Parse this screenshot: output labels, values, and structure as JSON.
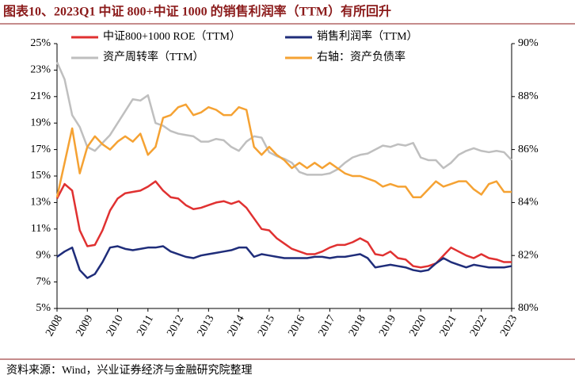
{
  "chart_data": {
    "type": "line",
    "title": "图表10、2023Q1 中证 800+中证 1000 的销售利润率（TTM）有所回升",
    "source": "资料来源：Wind，兴业证券经济与金融研究院整理",
    "x": [
      2008,
      2008.25,
      2008.5,
      2008.75,
      2009,
      2009.25,
      2009.5,
      2009.75,
      2010,
      2010.25,
      2010.5,
      2010.75,
      2011,
      2011.25,
      2011.5,
      2011.75,
      2012,
      2012.25,
      2012.5,
      2012.75,
      2013,
      2013.25,
      2013.5,
      2013.75,
      2014,
      2014.25,
      2014.5,
      2014.75,
      2015,
      2015.25,
      2015.5,
      2015.75,
      2016,
      2016.25,
      2016.5,
      2016.75,
      2017,
      2017.25,
      2017.5,
      2017.75,
      2018,
      2018.25,
      2018.5,
      2018.75,
      2019,
      2019.25,
      2019.5,
      2019.75,
      2020,
      2020.25,
      2020.5,
      2020.75,
      2021,
      2021.25,
      2021.5,
      2021.75,
      2022,
      2022.25,
      2022.5,
      2022.75,
      2023
    ],
    "xlim": [
      2008,
      2023
    ],
    "xticks": [
      2008,
      2009,
      2010,
      2011,
      2012,
      2013,
      2014,
      2015,
      2016,
      2017,
      2018,
      2019,
      2020,
      2021,
      2022,
      2023
    ],
    "ylim": [
      5,
      25
    ],
    "yticks": [
      {
        "value": 5,
        "label": "5%"
      },
      {
        "value": 7,
        "label": "7%"
      },
      {
        "value": 9,
        "label": "9%"
      },
      {
        "value": 11,
        "label": "11%"
      },
      {
        "value": 13,
        "label": "13%"
      },
      {
        "value": 15,
        "label": "15%"
      },
      {
        "value": 17,
        "label": "17%"
      },
      {
        "value": 19,
        "label": "19%"
      },
      {
        "value": 21,
        "label": "21%"
      },
      {
        "value": 23,
        "label": "23%"
      },
      {
        "value": 25,
        "label": "25%"
      }
    ],
    "y2lim": [
      80,
      90
    ],
    "y2ticks": [
      {
        "value": 80,
        "label": "80%"
      },
      {
        "value": 82,
        "label": "82%"
      },
      {
        "value": 84,
        "label": "84%"
      },
      {
        "value": 86,
        "label": "86%"
      },
      {
        "value": 88,
        "label": "88%"
      },
      {
        "value": 90,
        "label": "90%"
      }
    ],
    "grid": false,
    "series": [
      {
        "name": "中证800+1000 ROE（TTM）",
        "color": "#e03131",
        "values": [
          13.3,
          14.4,
          13.9,
          10.9,
          9.7,
          9.8,
          10.9,
          12.4,
          13.3,
          13.7,
          13.8,
          13.9,
          14.2,
          14.6,
          13.9,
          13.4,
          13.3,
          12.8,
          12.5,
          12.6,
          12.8,
          13.0,
          13.1,
          12.9,
          13.1,
          12.6,
          11.8,
          11.0,
          10.9,
          10.3,
          9.9,
          9.5,
          9.3,
          9.1,
          9.1,
          9.3,
          9.6,
          9.8,
          9.8,
          10.0,
          10.3,
          10.0,
          9.1,
          9.0,
          9.3,
          8.8,
          8.7,
          8.2,
          8.1,
          8.2,
          8.4,
          9.0,
          9.6,
          9.3,
          9.0,
          8.8,
          9.1,
          8.8,
          8.7,
          8.5,
          8.5
        ]
      },
      {
        "name": "销售利润率（TTM）",
        "color": "#1f2d7a",
        "values": [
          8.9,
          9.3,
          9.6,
          7.9,
          7.3,
          7.6,
          8.5,
          9.6,
          9.7,
          9.5,
          9.4,
          9.5,
          9.6,
          9.6,
          9.7,
          9.3,
          9.1,
          8.9,
          8.8,
          9.0,
          9.1,
          9.2,
          9.3,
          9.4,
          9.6,
          9.6,
          8.9,
          9.1,
          9.0,
          8.9,
          8.8,
          8.8,
          8.8,
          8.8,
          8.9,
          8.9,
          8.8,
          8.9,
          8.9,
          9.0,
          9.1,
          8.8,
          8.1,
          8.2,
          8.3,
          8.2,
          8.1,
          7.9,
          7.8,
          7.9,
          8.4,
          8.8,
          8.5,
          8.3,
          8.1,
          8.3,
          8.2,
          8.1,
          8.1,
          8.1,
          8.2
        ]
      },
      {
        "name": "资产周转率（TTM）",
        "color": "#bfbfbf",
        "values": [
          23.6,
          22.3,
          19.6,
          18.7,
          17.2,
          16.9,
          17.5,
          18.1,
          19.0,
          19.9,
          20.8,
          20.7,
          21.1,
          19.0,
          18.8,
          18.4,
          18.2,
          18.1,
          18.0,
          17.6,
          17.6,
          17.8,
          17.7,
          17.2,
          16.9,
          17.6,
          18.0,
          17.9,
          16.8,
          16.5,
          16.3,
          16.0,
          15.3,
          15.1,
          15.1,
          15.1,
          15.2,
          15.5,
          16.0,
          16.4,
          16.6,
          16.7,
          17.0,
          17.3,
          17.2,
          17.4,
          17.3,
          17.5,
          16.4,
          16.2,
          16.2,
          15.6,
          16.0,
          16.6,
          16.9,
          17.1,
          16.9,
          16.8,
          16.9,
          16.8,
          16.2
        ]
      },
      {
        "name": "右轴：资产负债率",
        "color": "#f5a233",
        "axis": "y2",
        "values": [
          84.2,
          85.5,
          86.8,
          85.1,
          86.1,
          86.5,
          86.2,
          86.0,
          86.3,
          86.5,
          86.3,
          86.6,
          85.8,
          86.1,
          87.2,
          87.3,
          87.6,
          87.7,
          87.3,
          87.4,
          87.6,
          87.5,
          87.3,
          87.3,
          87.6,
          87.5,
          86.1,
          85.8,
          86.1,
          85.8,
          85.6,
          85.3,
          85.5,
          85.3,
          85.5,
          85.3,
          85.5,
          85.3,
          85.1,
          85.0,
          85.0,
          84.9,
          84.8,
          84.6,
          84.7,
          84.6,
          84.6,
          84.2,
          84.2,
          84.5,
          84.8,
          84.6,
          84.7,
          84.8,
          84.8,
          84.5,
          84.3,
          84.7,
          84.8,
          84.4,
          84.4
        ]
      }
    ]
  }
}
